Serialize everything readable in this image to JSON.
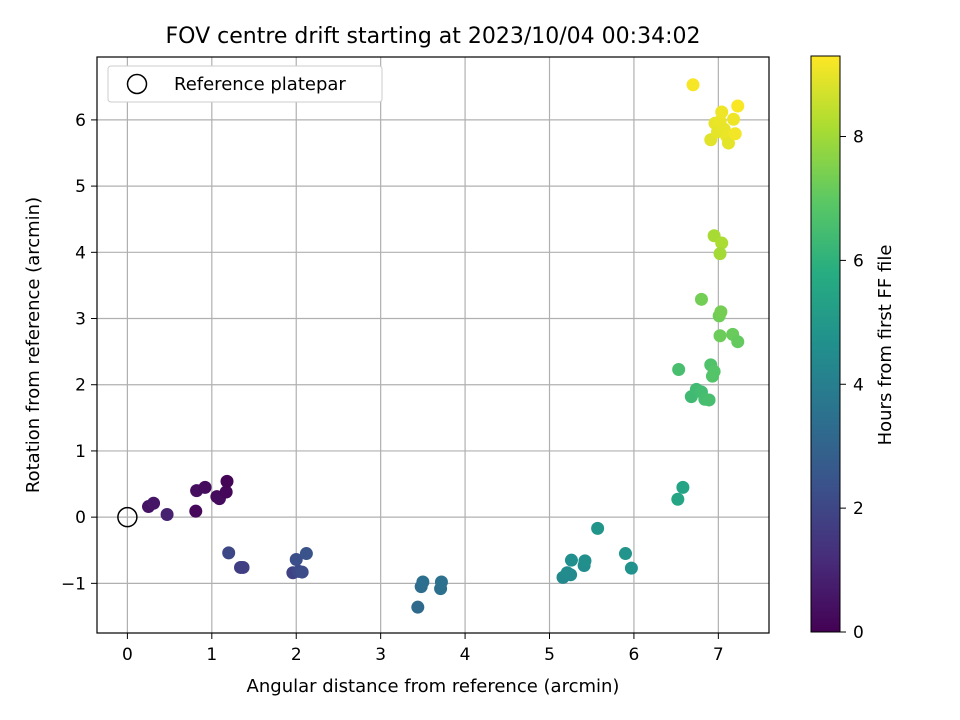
{
  "chart_data": {
    "type": "scatter",
    "title": "FOV centre drift starting at 2023/10/04 00:34:02",
    "xlabel": "Angular distance from reference (arcmin)",
    "ylabel": "Rotation from reference (arcmin)",
    "xlim": [
      -0.36,
      7.6
    ],
    "ylim": [
      -1.75,
      6.95
    ],
    "xticks": [
      0,
      1,
      2,
      3,
      4,
      5,
      6,
      7
    ],
    "xtick_labels": [
      "0",
      "1",
      "2",
      "3",
      "4",
      "5",
      "6",
      "7"
    ],
    "yticks": [
      -1,
      0,
      1,
      2,
      3,
      4,
      5,
      6
    ],
    "ytick_labels": [
      "−1",
      "0",
      "1",
      "2",
      "3",
      "4",
      "5",
      "6"
    ],
    "grid": true,
    "legend": {
      "position": "upper-left",
      "entries": [
        {
          "label": "Reference platepar",
          "marker": "open-circle"
        }
      ]
    },
    "reference_point": {
      "x": 0,
      "y": 0
    },
    "colorbar": {
      "label": "Hours from first FF file",
      "colormap": "viridis",
      "range": [
        0,
        9.3
      ],
      "ticks": [
        0,
        2,
        4,
        6,
        8
      ],
      "tick_labels": [
        "0",
        "2",
        "4",
        "6",
        "8"
      ]
    },
    "points": [
      {
        "x": 0.25,
        "y": 0.16,
        "c": 0.45
      },
      {
        "x": 0.31,
        "y": 0.21,
        "c": 0.55
      },
      {
        "x": 0.47,
        "y": 0.04,
        "c": 0.9
      },
      {
        "x": 0.81,
        "y": 0.09,
        "c": 0.2
      },
      {
        "x": 0.82,
        "y": 0.4,
        "c": 0.35
      },
      {
        "x": 0.92,
        "y": 0.45,
        "c": 0.3
      },
      {
        "x": 1.06,
        "y": 0.31,
        "c": 0.25
      },
      {
        "x": 1.09,
        "y": 0.28,
        "c": 0.3
      },
      {
        "x": 1.17,
        "y": 0.38,
        "c": 0.15
      },
      {
        "x": 1.18,
        "y": 0.54,
        "c": 0.1
      },
      {
        "x": 1.2,
        "y": -0.54,
        "c": 2.0
      },
      {
        "x": 1.34,
        "y": -0.76,
        "c": 1.7
      },
      {
        "x": 1.37,
        "y": -0.76,
        "c": 1.75
      },
      {
        "x": 1.96,
        "y": -0.84,
        "c": 1.9
      },
      {
        "x": 2.0,
        "y": -0.64,
        "c": 2.3
      },
      {
        "x": 2.03,
        "y": -0.82,
        "c": 2.1
      },
      {
        "x": 2.07,
        "y": -0.83,
        "c": 2.2
      },
      {
        "x": 2.12,
        "y": -0.55,
        "c": 2.4
      },
      {
        "x": 3.44,
        "y": -1.36,
        "c": 3.25
      },
      {
        "x": 3.48,
        "y": -1.05,
        "c": 3.35
      },
      {
        "x": 3.5,
        "y": -0.98,
        "c": 3.4
      },
      {
        "x": 3.71,
        "y": -1.08,
        "c": 3.45
      },
      {
        "x": 3.72,
        "y": -0.98,
        "c": 3.5
      },
      {
        "x": 5.16,
        "y": -0.91,
        "c": 4.4
      },
      {
        "x": 5.21,
        "y": -0.84,
        "c": 4.5
      },
      {
        "x": 5.25,
        "y": -0.87,
        "c": 4.45
      },
      {
        "x": 5.26,
        "y": -0.65,
        "c": 4.6
      },
      {
        "x": 5.41,
        "y": -0.73,
        "c": 4.55
      },
      {
        "x": 5.42,
        "y": -0.66,
        "c": 4.65
      },
      {
        "x": 5.57,
        "y": -0.17,
        "c": 4.85
      },
      {
        "x": 5.9,
        "y": -0.55,
        "c": 4.8
      },
      {
        "x": 5.97,
        "y": -0.77,
        "c": 4.75
      },
      {
        "x": 6.52,
        "y": 0.27,
        "c": 5.5
      },
      {
        "x": 6.58,
        "y": 0.45,
        "c": 5.4
      },
      {
        "x": 6.53,
        "y": 2.23,
        "c": 6.55
      },
      {
        "x": 6.68,
        "y": 1.82,
        "c": 6.35
      },
      {
        "x": 6.74,
        "y": 1.93,
        "c": 6.4
      },
      {
        "x": 6.8,
        "y": 1.89,
        "c": 6.45
      },
      {
        "x": 6.84,
        "y": 1.78,
        "c": 6.5
      },
      {
        "x": 6.89,
        "y": 1.77,
        "c": 6.55
      },
      {
        "x": 6.91,
        "y": 2.3,
        "c": 6.7
      },
      {
        "x": 6.93,
        "y": 2.13,
        "c": 6.75
      },
      {
        "x": 6.95,
        "y": 2.2,
        "c": 6.8
      },
      {
        "x": 6.8,
        "y": 3.29,
        "c": 7.3
      },
      {
        "x": 7.01,
        "y": 3.04,
        "c": 7.25
      },
      {
        "x": 7.03,
        "y": 3.1,
        "c": 7.35
      },
      {
        "x": 7.02,
        "y": 2.74,
        "c": 7.2
      },
      {
        "x": 7.17,
        "y": 2.76,
        "c": 7.15
      },
      {
        "x": 7.23,
        "y": 2.65,
        "c": 7.1
      },
      {
        "x": 6.95,
        "y": 4.25,
        "c": 8.1
      },
      {
        "x": 7.04,
        "y": 4.14,
        "c": 8.15
      },
      {
        "x": 7.02,
        "y": 3.98,
        "c": 8.05
      },
      {
        "x": 6.7,
        "y": 6.53,
        "c": 9.2
      },
      {
        "x": 6.91,
        "y": 5.7,
        "c": 8.9
      },
      {
        "x": 6.96,
        "y": 5.95,
        "c": 9.0
      },
      {
        "x": 6.99,
        "y": 5.82,
        "c": 8.95
      },
      {
        "x": 7.02,
        "y": 5.98,
        "c": 9.05
      },
      {
        "x": 7.04,
        "y": 6.12,
        "c": 9.1
      },
      {
        "x": 7.07,
        "y": 5.86,
        "c": 9.0
      },
      {
        "x": 7.1,
        "y": 5.75,
        "c": 9.05
      },
      {
        "x": 7.12,
        "y": 5.65,
        "c": 8.95
      },
      {
        "x": 7.18,
        "y": 6.01,
        "c": 9.1
      },
      {
        "x": 7.2,
        "y": 5.79,
        "c": 9.15
      },
      {
        "x": 7.23,
        "y": 6.21,
        "c": 9.25
      }
    ]
  }
}
